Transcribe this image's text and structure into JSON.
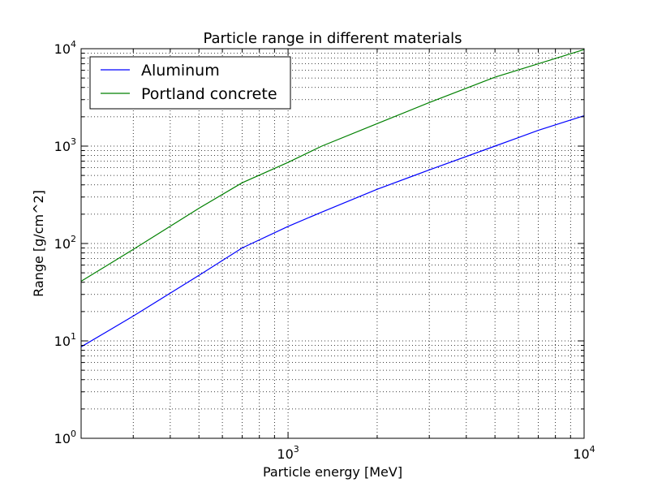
{
  "chart_data": {
    "type": "line",
    "title": "Particle range in different materials",
    "xlabel": "Particle energy [MeV]",
    "ylabel": "Range [g/cm^2]",
    "xscale": "log",
    "yscale": "log",
    "xlim": [
      200,
      10000
    ],
    "ylim": [
      1,
      10000
    ],
    "grid": "on (major and minor, dotted)",
    "legend_position": "upper-left",
    "x_ticks": [
      {
        "value": 1000,
        "base": "10",
        "exponent": "3"
      },
      {
        "value": 10000,
        "base": "10",
        "exponent": "4"
      }
    ],
    "y_ticks": [
      {
        "value": 1,
        "base": "10",
        "exponent": "0"
      },
      {
        "value": 10,
        "base": "10",
        "exponent": "1"
      },
      {
        "value": 100,
        "base": "10",
        "exponent": "2"
      },
      {
        "value": 1000,
        "base": "10",
        "exponent": "3"
      },
      {
        "value": 10000,
        "base": "10",
        "exponent": "4"
      }
    ],
    "series": [
      {
        "name": "Aluminum",
        "color": "#0000ff",
        "x": [
          200,
          300,
          500,
          700,
          1000,
          1300,
          2000,
          3000,
          5000,
          7000,
          10000
        ],
        "y": [
          8.7,
          18,
          47,
          90,
          150,
          210,
          360,
          570,
          1000,
          1450,
          2050
        ]
      },
      {
        "name": "Portland concrete",
        "color": "#008000",
        "x": [
          200,
          300,
          500,
          700,
          1000,
          1300,
          2000,
          3000,
          5000,
          7000,
          10000
        ],
        "y": [
          41,
          87,
          230,
          420,
          680,
          1000,
          1700,
          2800,
          5100,
          7000,
          9800
        ]
      }
    ]
  }
}
